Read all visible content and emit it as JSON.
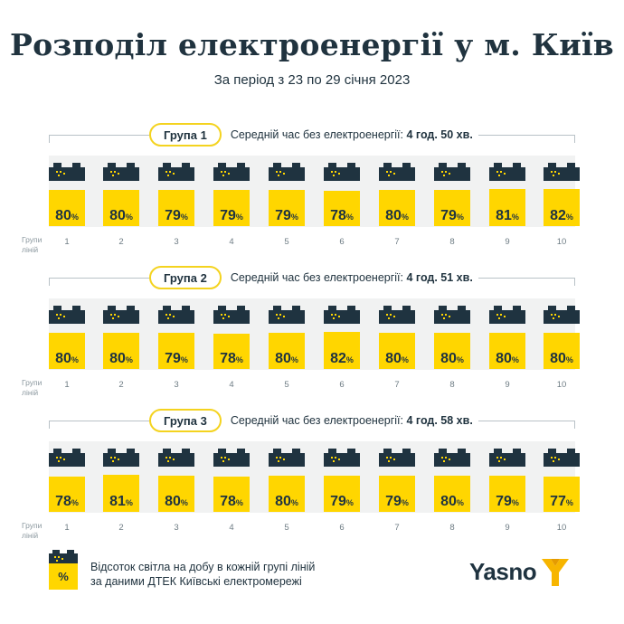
{
  "title": "Розподіл електроенергії у м. Київ",
  "subtitle": "За період з 23 по 29 січня 2023",
  "axis_title_line1": "Групи",
  "axis_title_line2": "ліній",
  "percent_sign": "%",
  "line_numbers": [
    "1",
    "2",
    "3",
    "4",
    "5",
    "6",
    "7",
    "8",
    "9",
    "10"
  ],
  "colors": {
    "accent": "#ffd600",
    "dark": "#1f3340",
    "panel": "#f1f2f2",
    "pill_border": "#f4d31f",
    "brand_mark": "#f7b500"
  },
  "groups": [
    {
      "label": "Група 1",
      "avg_prefix": "Середній час без електроенергії:",
      "avg_value": "4 год. 50 хв.",
      "values": [
        80,
        80,
        79,
        79,
        79,
        78,
        80,
        79,
        81,
        82
      ]
    },
    {
      "label": "Група 2",
      "avg_prefix": "Середній час без електроенергії:",
      "avg_value": "4 год. 51 хв.",
      "values": [
        80,
        80,
        79,
        78,
        80,
        82,
        80,
        80,
        80,
        80
      ]
    },
    {
      "label": "Група 3",
      "avg_prefix": "Середній час без електроенергії:",
      "avg_value": "4 год. 58 хв.",
      "values": [
        78,
        81,
        80,
        78,
        80,
        79,
        79,
        80,
        79,
        77
      ]
    }
  ],
  "legend": {
    "line1": "Відсоток світла на добу в кожній групі ліній",
    "line2": "за даними ДТЕК Київські електромережі",
    "icon_symbol": "%"
  },
  "brand": {
    "name": "Yasno",
    "mark_icon": "yasno-y-logo-icon"
  }
}
